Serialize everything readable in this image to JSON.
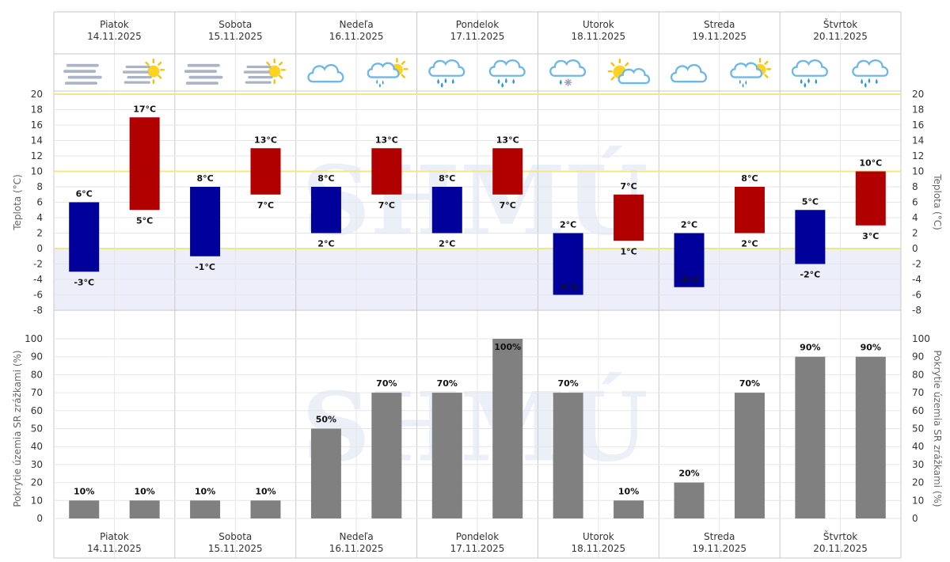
{
  "days": [
    {
      "name": "Piatok",
      "date": "14.11.2025",
      "icons": [
        "fog-icon",
        "sun-haze-icon"
      ]
    },
    {
      "name": "Sobota",
      "date": "15.11.2025",
      "icons": [
        "fog-icon",
        "sun-haze-icon"
      ]
    },
    {
      "name": "Nedeľa",
      "date": "16.11.2025",
      "icons": [
        "cloud-icon",
        "sun-cloud-rain-icon"
      ]
    },
    {
      "name": "Pondelok",
      "date": "17.11.2025",
      "icons": [
        "cloud-rain-icon",
        "cloud-rain-icon"
      ]
    },
    {
      "name": "Utorok",
      "date": "18.11.2025",
      "icons": [
        "cloud-snow-icon",
        "sun-cloud-icon"
      ]
    },
    {
      "name": "Streda",
      "date": "19.11.2025",
      "icons": [
        "cloud-icon",
        "sun-cloud-rain-icon"
      ]
    },
    {
      "name": "Štvrtok",
      "date": "20.11.2025",
      "icons": [
        "cloud-rain-icon",
        "cloud-rain-icon"
      ]
    }
  ],
  "watermark": "SHMÚ",
  "colors": {
    "min_bar": "#00009b",
    "max_bar": "#b00000",
    "precip_bar": "#808080",
    "highlight_line": "#f0e68c",
    "negative_band": "#eceefa",
    "grid": "#e6e6e6"
  },
  "chart_data": [
    {
      "type": "bar",
      "title": "",
      "ylabel": "Teplota (°C)",
      "ylim": [
        -8,
        20
      ],
      "yticks": [
        -8,
        -6,
        -4,
        -2,
        0,
        2,
        4,
        6,
        8,
        10,
        12,
        14,
        16,
        18,
        20
      ],
      "highlight_lines": [
        20,
        10,
        0
      ],
      "unit": "°C",
      "series": [
        {
          "name": "min",
          "ranges": [
            [
              -3,
              6
            ],
            [
              -1,
              8
            ],
            [
              2,
              8
            ],
            [
              2,
              8
            ],
            [
              -6,
              2
            ],
            [
              -5,
              2
            ],
            [
              -2,
              5
            ]
          ]
        },
        {
          "name": "max",
          "ranges": [
            [
              5,
              17
            ],
            [
              7,
              13
            ],
            [
              7,
              13
            ],
            [
              7,
              13
            ],
            [
              1,
              7
            ],
            [
              2,
              8
            ],
            [
              3,
              10
            ]
          ]
        }
      ]
    },
    {
      "type": "bar",
      "title": "",
      "ylabel": "Pokrytie územia SR zrážkami (%)",
      "ylim": [
        0,
        100
      ],
      "yticks": [
        0,
        10,
        20,
        30,
        40,
        50,
        60,
        70,
        80,
        90,
        100
      ],
      "unit": "%",
      "values": [
        10,
        10,
        10,
        10,
        50,
        70,
        70,
        100,
        70,
        10,
        20,
        70,
        90,
        90
      ]
    }
  ]
}
